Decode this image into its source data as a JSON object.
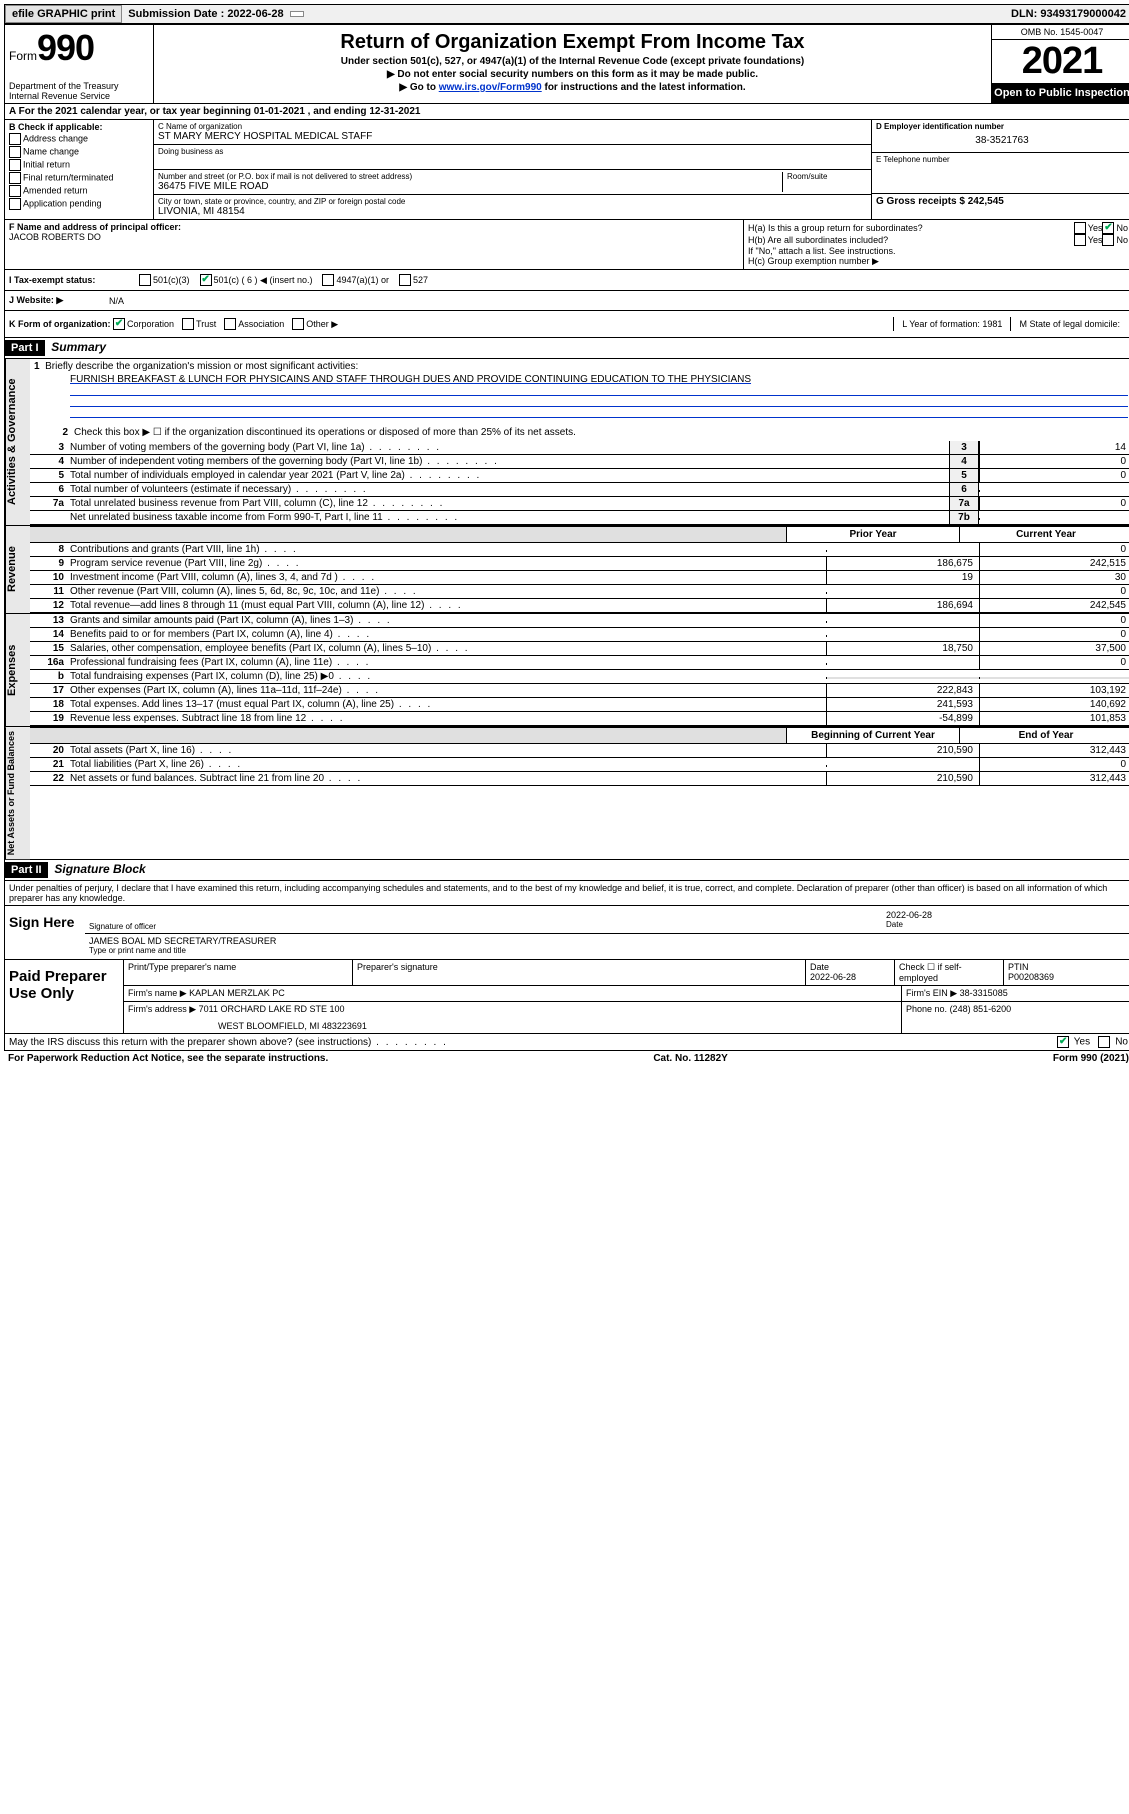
{
  "topbar": {
    "efile": "efile GRAPHIC print",
    "sub_label": "Submission Date : 2022-06-28",
    "dln": "DLN: 93493179000042"
  },
  "header": {
    "form_word": "Form",
    "form_num": "990",
    "dept": "Department of the Treasury\nInternal Revenue Service",
    "title": "Return of Organization Exempt From Income Tax",
    "sub1": "Under section 501(c), 527, or 4947(a)(1) of the Internal Revenue Code (except private foundations)",
    "sub2": "▶ Do not enter social security numbers on this form as it may be made public.",
    "sub3_pre": "▶ Go to ",
    "sub3_link": "www.irs.gov/Form990",
    "sub3_post": " for instructions and the latest information.",
    "omb": "OMB No. 1545-0047",
    "year": "2021",
    "open": "Open to Public Inspection"
  },
  "a_line": "A For the 2021 calendar year, or tax year beginning 01-01-2021    , and ending 12-31-2021",
  "b": {
    "hdr": "B Check if applicable:",
    "items": [
      "Address change",
      "Name change",
      "Initial return",
      "Final return/terminated",
      "Amended return",
      "Application pending"
    ]
  },
  "c": {
    "name_label": "C Name of organization",
    "name": "ST MARY MERCY HOSPITAL MEDICAL STAFF",
    "dba_label": "Doing business as",
    "addr_label": "Number and street (or P.O. box if mail is not delivered to street address)",
    "room_label": "Room/suite",
    "addr": "36475 FIVE MILE ROAD",
    "city_label": "City or town, state or province, country, and ZIP or foreign postal code",
    "city": "LIVONIA, MI  48154"
  },
  "d": {
    "ein_label": "D Employer identification number",
    "ein": "38-3521763",
    "phone_label": "E Telephone number",
    "gross_label": "G Gross receipts $ 242,545"
  },
  "f": {
    "label": "F Name and address of principal officer:",
    "name": "JACOB ROBERTS DO"
  },
  "h": {
    "ha": "H(a)  Is this a group return for subordinates?",
    "hb": "H(b)  Are all subordinates included?",
    "hb_note": "If \"No,\" attach a list. See instructions.",
    "hc": "H(c)  Group exemption number ▶",
    "yes": "Yes",
    "no": "No"
  },
  "i": {
    "label": "I   Tax-exempt status:",
    "opts": [
      "501(c)(3)",
      "501(c) ( 6 ) ◀ (insert no.)",
      "4947(a)(1) or",
      "527"
    ]
  },
  "j": {
    "label": "J   Website: ▶",
    "val": "N/A"
  },
  "k": {
    "label": "K Form of organization:",
    "opts": [
      "Corporation",
      "Trust",
      "Association",
      "Other ▶"
    ],
    "l": "L Year of formation: 1981",
    "m": "M State of legal domicile:"
  },
  "part1": {
    "hdr": "Part I",
    "title": "Summary"
  },
  "summary": {
    "briefly_num": "1",
    "briefly": "Briefly describe the organization's mission or most significant activities:",
    "mission": "FURNISH BREAKFAST & LUNCH FOR PHYSICAINS AND STAFF THROUGH DUES AND PROVIDE CONTINUING EDUCATION TO THE PHYSICIANS",
    "line2": "Check this box ▶ ☐  if the organization discontinued its operations or disposed of more than 25% of its net assets.",
    "lines_gov": [
      {
        "n": "3",
        "t": "Number of voting members of the governing body (Part VI, line 1a)",
        "box": "3",
        "v": "14"
      },
      {
        "n": "4",
        "t": "Number of independent voting members of the governing body (Part VI, line 1b)",
        "box": "4",
        "v": "0"
      },
      {
        "n": "5",
        "t": "Total number of individuals employed in calendar year 2021 (Part V, line 2a)",
        "box": "5",
        "v": "0"
      },
      {
        "n": "6",
        "t": "Total number of volunteers (estimate if necessary)",
        "box": "6",
        "v": ""
      },
      {
        "n": "7a",
        "t": "Total unrelated business revenue from Part VIII, column (C), line 12",
        "box": "7a",
        "v": "0"
      },
      {
        "n": "",
        "t": "Net unrelated business taxable income from Form 990-T, Part I, line 11",
        "box": "7b",
        "v": ""
      }
    ],
    "prior_hdr": "Prior Year",
    "current_hdr": "Current Year",
    "lines_rev": [
      {
        "n": "8",
        "t": "Contributions and grants (Part VIII, line 1h)",
        "p": "",
        "c": "0"
      },
      {
        "n": "9",
        "t": "Program service revenue (Part VIII, line 2g)",
        "p": "186,675",
        "c": "242,515"
      },
      {
        "n": "10",
        "t": "Investment income (Part VIII, column (A), lines 3, 4, and 7d )",
        "p": "19",
        "c": "30"
      },
      {
        "n": "11",
        "t": "Other revenue (Part VIII, column (A), lines 5, 6d, 8c, 9c, 10c, and 11e)",
        "p": "",
        "c": "0"
      },
      {
        "n": "12",
        "t": "Total revenue—add lines 8 through 11 (must equal Part VIII, column (A), line 12)",
        "p": "186,694",
        "c": "242,545"
      }
    ],
    "lines_exp": [
      {
        "n": "13",
        "t": "Grants and similar amounts paid (Part IX, column (A), lines 1–3)",
        "p": "",
        "c": "0"
      },
      {
        "n": "14",
        "t": "Benefits paid to or for members (Part IX, column (A), line 4)",
        "p": "",
        "c": "0"
      },
      {
        "n": "15",
        "t": "Salaries, other compensation, employee benefits (Part IX, column (A), lines 5–10)",
        "p": "18,750",
        "c": "37,500"
      },
      {
        "n": "16a",
        "t": "Professional fundraising fees (Part IX, column (A), line 11e)",
        "p": "",
        "c": "0"
      },
      {
        "n": "b",
        "t": "Total fundraising expenses (Part IX, column (D), line 25) ▶0",
        "p": "grey",
        "c": "grey"
      },
      {
        "n": "17",
        "t": "Other expenses (Part IX, column (A), lines 11a–11d, 11f–24e)",
        "p": "222,843",
        "c": "103,192"
      },
      {
        "n": "18",
        "t": "Total expenses. Add lines 13–17 (must equal Part IX, column (A), line 25)",
        "p": "241,593",
        "c": "140,692"
      },
      {
        "n": "19",
        "t": "Revenue less expenses. Subtract line 18 from line 12",
        "p": "-54,899",
        "c": "101,853"
      }
    ],
    "beg_hdr": "Beginning of Current Year",
    "end_hdr": "End of Year",
    "lines_net": [
      {
        "n": "20",
        "t": "Total assets (Part X, line 16)",
        "p": "210,590",
        "c": "312,443"
      },
      {
        "n": "21",
        "t": "Total liabilities (Part X, line 26)",
        "p": "",
        "c": "0"
      },
      {
        "n": "22",
        "t": "Net assets or fund balances. Subtract line 21 from line 20",
        "p": "210,590",
        "c": "312,443"
      }
    ]
  },
  "vtabs": {
    "gov": "Activities & Governance",
    "rev": "Revenue",
    "exp": "Expenses",
    "net": "Net Assets or Fund Balances"
  },
  "part2": {
    "hdr": "Part II",
    "title": "Signature Block"
  },
  "sig": {
    "declare": "Under penalties of perjury, I declare that I have examined this return, including accompanying schedules and statements, and to the best of my knowledge and belief, it is true, correct, and complete. Declaration of preparer (other than officer) is based on all information of which preparer has any knowledge.",
    "sign_here": "Sign Here",
    "sig_officer": "Signature of officer",
    "date_label": "Date",
    "date": "2022-06-28",
    "name": "JAMES BOAL MD  SECRETARY/TREASURER",
    "name_label": "Type or print name and title"
  },
  "paid": {
    "hdr": "Paid Preparer Use Only",
    "cols": [
      "Print/Type preparer's name",
      "Preparer's signature",
      "Date",
      "",
      "PTIN"
    ],
    "date": "2022-06-28",
    "check_label": "Check ☐ if self-employed",
    "ptin": "P00208369",
    "firm_name_label": "Firm's name    ▶",
    "firm_name": "KAPLAN MERZLAK PC",
    "firm_ein_label": "Firm's EIN ▶",
    "firm_ein": "38-3315085",
    "firm_addr_label": "Firm's address ▶",
    "firm_addr1": "7011 ORCHARD LAKE RD STE 100",
    "firm_addr2": "WEST BLOOMFIELD, MI  483223691",
    "phone_label": "Phone no.",
    "phone": "(248) 851-6200"
  },
  "footer": {
    "may": "May the IRS discuss this return with the preparer shown above? (see instructions)",
    "paperwork": "For Paperwork Reduction Act Notice, see the separate instructions.",
    "cat": "Cat. No. 11282Y",
    "form": "Form 990 (2021)",
    "yes": "Yes",
    "no": "No"
  }
}
